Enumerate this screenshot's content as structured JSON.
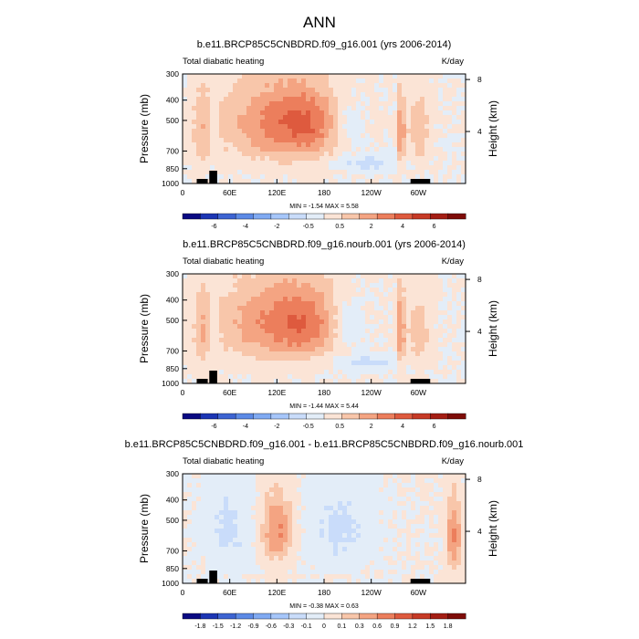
{
  "figure_title": "ANN",
  "chart_data": [
    {
      "type": "heatmap",
      "title": "b.e11.BRCP85C5CNBDRD.f09_g16.001 (yrs 2006-2014)",
      "left_label": "Total diabatic heating",
      "units": "K/day",
      "ylabel": "Pressure (mb)",
      "ylabel_right": "Height (km)",
      "y_ticks": [
        300,
        400,
        500,
        700,
        850,
        1000
      ],
      "y_ticks_right": [
        8,
        4
      ],
      "x_ticks": [
        "0",
        "60E",
        "120E",
        "180",
        "120W",
        "60W"
      ],
      "x_tick_values": [
        0,
        60,
        120,
        180,
        240,
        300
      ],
      "xlim": [
        0,
        360
      ],
      "ylim": [
        1000,
        300
      ],
      "min": -1.54,
      "max": 5.58,
      "min_max_text": "MIN = -1.54  MAX =  5.58",
      "colorbar_labels": [
        "-6",
        "-4",
        "-2",
        "-0.5",
        "0.5",
        "2",
        "4",
        "6"
      ],
      "colorbar_colors": [
        "#0a0a82",
        "#1c36b4",
        "#3d64d2",
        "#5c8ae6",
        "#80aaf2",
        "#a6c6fa",
        "#c9dcfa",
        "#e3edf8",
        "#fbe4d6",
        "#f8c6aa",
        "#f4a482",
        "#ec7e5c",
        "#de5a3e",
        "#c63a26",
        "#a41e14",
        "#7e0c08"
      ],
      "features": [
        {
          "type": "warm",
          "lon": 125,
          "p": 520,
          "lon_width": 75,
          "p_width": 240,
          "value": 2.2
        },
        {
          "type": "warm",
          "lon": 160,
          "p": 520,
          "lon_width": 40,
          "p_width": 180,
          "value": 1.2
        },
        {
          "type": "warm",
          "lon": 25,
          "p": 560,
          "lon_width": 12,
          "p_width": 260,
          "value": 1.0
        },
        {
          "type": "cool",
          "lon": 210,
          "p": 520,
          "lon_width": 22,
          "p_width": 160,
          "value": -1.0
        },
        {
          "type": "cool",
          "lon": 235,
          "p": 800,
          "lon_width": 40,
          "p_width": 70,
          "value": -1.0
        },
        {
          "type": "cool",
          "lon": 40,
          "p": 560,
          "lon_width": 5,
          "p_width": 200,
          "value": -0.7
        },
        {
          "type": "warm",
          "lon": 278,
          "p": 560,
          "lon_width": 4,
          "p_width": 240,
          "value": 2.5
        },
        {
          "type": "warm",
          "lon": 300,
          "p": 560,
          "lon_width": 15,
          "p_width": 220,
          "value": 1.2
        }
      ]
    },
    {
      "type": "heatmap",
      "title": "b.e11.BRCP85C5CNBDRD.f09_g16.nourb.001 (yrs 2006-2014)",
      "left_label": "Total diabatic heating",
      "units": "K/day",
      "ylabel": "Pressure (mb)",
      "ylabel_right": "Height (km)",
      "y_ticks": [
        300,
        400,
        500,
        700,
        850,
        1000
      ],
      "y_ticks_right": [
        8,
        4
      ],
      "x_ticks": [
        "0",
        "60E",
        "120E",
        "180",
        "120W",
        "60W"
      ],
      "x_tick_values": [
        0,
        60,
        120,
        180,
        240,
        300
      ],
      "xlim": [
        0,
        360
      ],
      "ylim": [
        1000,
        300
      ],
      "min": -1.44,
      "max": 5.44,
      "min_max_text": "MIN = -1.44  MAX =  5.44",
      "colorbar_labels": [
        "-6",
        "-4",
        "-2",
        "-0.5",
        "0.5",
        "2",
        "4",
        "6"
      ],
      "colorbar_colors": [
        "#0a0a82",
        "#1c36b4",
        "#3d64d2",
        "#5c8ae6",
        "#80aaf2",
        "#a6c6fa",
        "#c9dcfa",
        "#e3edf8",
        "#fbe4d6",
        "#f8c6aa",
        "#f4a482",
        "#ec7e5c",
        "#de5a3e",
        "#c63a26",
        "#a41e14",
        "#7e0c08"
      ],
      "features": [
        {
          "type": "warm",
          "lon": 120,
          "p": 520,
          "lon_width": 75,
          "p_width": 240,
          "value": 2.1
        },
        {
          "type": "warm",
          "lon": 160,
          "p": 520,
          "lon_width": 40,
          "p_width": 180,
          "value": 1.1
        },
        {
          "type": "warm",
          "lon": 25,
          "p": 560,
          "lon_width": 12,
          "p_width": 260,
          "value": 1.0
        },
        {
          "type": "cool",
          "lon": 210,
          "p": 520,
          "lon_width": 22,
          "p_width": 160,
          "value": -1.0
        },
        {
          "type": "cool",
          "lon": 235,
          "p": 800,
          "lon_width": 40,
          "p_width": 70,
          "value": -0.9
        },
        {
          "type": "cool",
          "lon": 40,
          "p": 560,
          "lon_width": 5,
          "p_width": 200,
          "value": -0.7
        },
        {
          "type": "warm",
          "lon": 278,
          "p": 560,
          "lon_width": 4,
          "p_width": 240,
          "value": 2.5
        },
        {
          "type": "warm",
          "lon": 300,
          "p": 560,
          "lon_width": 15,
          "p_width": 220,
          "value": 1.1
        }
      ]
    },
    {
      "type": "heatmap",
      "title": "b.e11.BRCP85C5CNBDRD.f09_g16.001 - b.e11.BRCP85C5CNBDRD.f09_g16.nourb.001",
      "left_label": "Total diabatic heating",
      "units": "K/day",
      "ylabel": "Pressure (mb)",
      "ylabel_right": "Height (km)",
      "y_ticks": [
        300,
        400,
        500,
        700,
        850,
        1000
      ],
      "y_ticks_right": [
        8,
        4
      ],
      "x_ticks": [
        "0",
        "60E",
        "120E",
        "180",
        "120W",
        "60W"
      ],
      "x_tick_values": [
        0,
        60,
        120,
        180,
        240,
        300
      ],
      "xlim": [
        0,
        360
      ],
      "ylim": [
        1000,
        300
      ],
      "min": -0.38,
      "max": 0.63,
      "min_max_text": "MIN = -0.38  MAX =  0.63",
      "colorbar_labels": [
        "-1.8",
        "-1.5",
        "-1.2",
        "-0.9",
        "-0.6",
        "-0.3",
        "-0.1",
        "0",
        "0.1",
        "0.3",
        "0.6",
        "0.9",
        "1.2",
        "1.5",
        "1.8"
      ],
      "colorbar_colors": [
        "#0a0a82",
        "#1c36b4",
        "#3d64d2",
        "#5c8ae6",
        "#80aaf2",
        "#a6c6fa",
        "#c9dcfa",
        "#e3edf8",
        "#fbe4d6",
        "#f8c6aa",
        "#f4a482",
        "#ec7e5c",
        "#de5a3e",
        "#c63a26",
        "#a41e14",
        "#7e0c08"
      ],
      "features": [
        {
          "type": "warm",
          "lon": 120,
          "p": 560,
          "lon_width": 20,
          "p_width": 200,
          "value": 0.25
        },
        {
          "type": "cool",
          "lon": 60,
          "p": 550,
          "lon_width": 30,
          "p_width": 250,
          "value": -0.1
        },
        {
          "type": "cool",
          "lon": 200,
          "p": 550,
          "lon_width": 40,
          "p_width": 250,
          "value": -0.1
        },
        {
          "type": "warm",
          "lon": 345,
          "p": 600,
          "lon_width": 10,
          "p_width": 250,
          "value": 0.25
        }
      ]
    }
  ]
}
